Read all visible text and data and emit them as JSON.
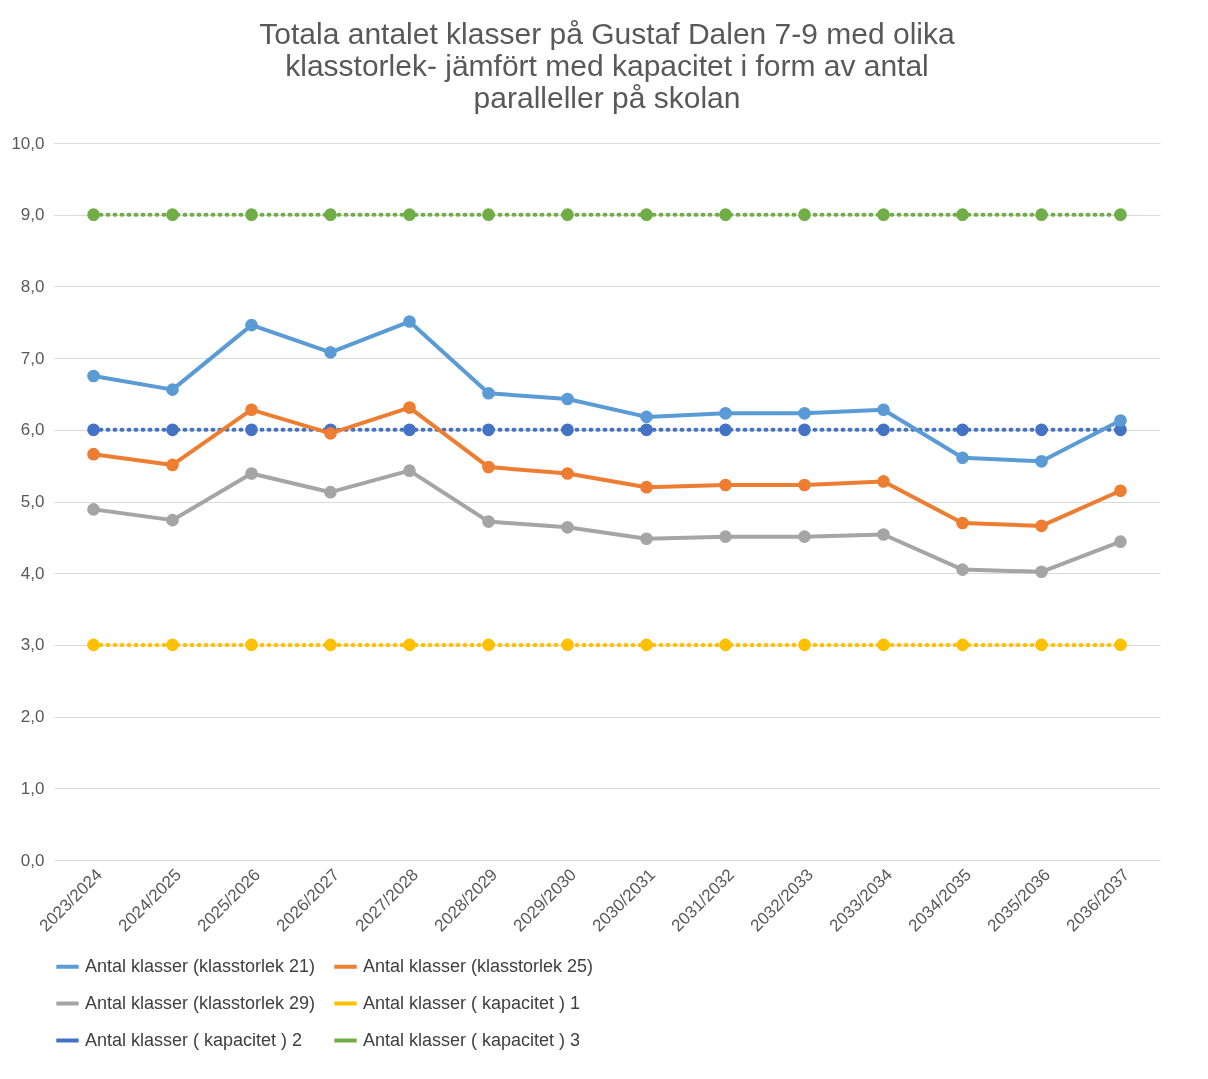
{
  "chart_data": {
    "type": "line",
    "title": "Totala antalet klasser på Gustaf Dalen 7-9 med olika klasstorlek- jämfört med kapacitet i form av antal paralleller på skolan",
    "categories": [
      "2023/2024",
      "2024/2025",
      "2025/2026",
      "2026/2027",
      "2027/2028",
      "2028/2029",
      "2029/2030",
      "2030/2031",
      "2031/2032",
      "2032/2033",
      "2033/2034",
      "2034/2035",
      "2035/2036",
      "2036/2037"
    ],
    "series": [
      {
        "name": "Antal klasser (klasstorlek 21)",
        "color": "#5b9bd5",
        "line_style": "solid",
        "values": [
          6.75,
          6.56,
          7.46,
          7.08,
          7.51,
          6.51,
          6.43,
          6.18,
          6.23,
          6.23,
          6.28,
          5.61,
          5.56,
          6.13
        ]
      },
      {
        "name": "Antal klasser (klasstorlek 25)",
        "color": "#ed7d31",
        "line_style": "solid",
        "values": [
          5.66,
          5.51,
          6.28,
          5.95,
          6.31,
          5.48,
          5.39,
          5.2,
          5.23,
          5.23,
          5.28,
          4.7,
          4.66,
          5.15
        ]
      },
      {
        "name": "Antal klasser (klasstorlek 29)",
        "color": "#a5a5a5",
        "line_style": "solid",
        "values": [
          4.89,
          4.74,
          5.39,
          5.13,
          5.43,
          4.72,
          4.64,
          4.48,
          4.51,
          4.51,
          4.54,
          4.05,
          4.02,
          4.44
        ]
      },
      {
        "name": "Antal klasser ( kapacitet ) 1",
        "color": "#ffc000",
        "line_style": "dotted",
        "values": [
          3,
          3,
          3,
          3,
          3,
          3,
          3,
          3,
          3,
          3,
          3,
          3,
          3,
          3
        ]
      },
      {
        "name": "Antal klasser ( kapacitet ) 2",
        "color": "#4472c4",
        "line_style": "dotted",
        "values": [
          6,
          6,
          6,
          6,
          6,
          6,
          6,
          6,
          6,
          6,
          6,
          6,
          6,
          6
        ]
      },
      {
        "name": "Antal klasser ( kapacitet ) 3",
        "color": "#70ad47",
        "line_style": "dotted",
        "values": [
          9,
          9,
          9,
          9,
          9,
          9,
          9,
          9,
          9,
          9,
          9,
          9,
          9,
          9
        ]
      }
    ],
    "ylim": [
      0,
      10
    ],
    "yticks": [
      {
        "value": 0,
        "label": "0,0"
      },
      {
        "value": 1,
        "label": "1,0"
      },
      {
        "value": 2,
        "label": "2,0"
      },
      {
        "value": 3,
        "label": "3,0"
      },
      {
        "value": 4,
        "label": "4,0"
      },
      {
        "value": 5,
        "label": "5,0"
      },
      {
        "value": 6,
        "label": "6,0"
      },
      {
        "value": 7,
        "label": "7,0"
      },
      {
        "value": 8,
        "label": "8,0"
      },
      {
        "value": 9,
        "label": "9,0"
      },
      {
        "value": 10,
        "label": "10,0"
      }
    ],
    "grid": "y",
    "legend": "bottom",
    "marker": "circle"
  }
}
